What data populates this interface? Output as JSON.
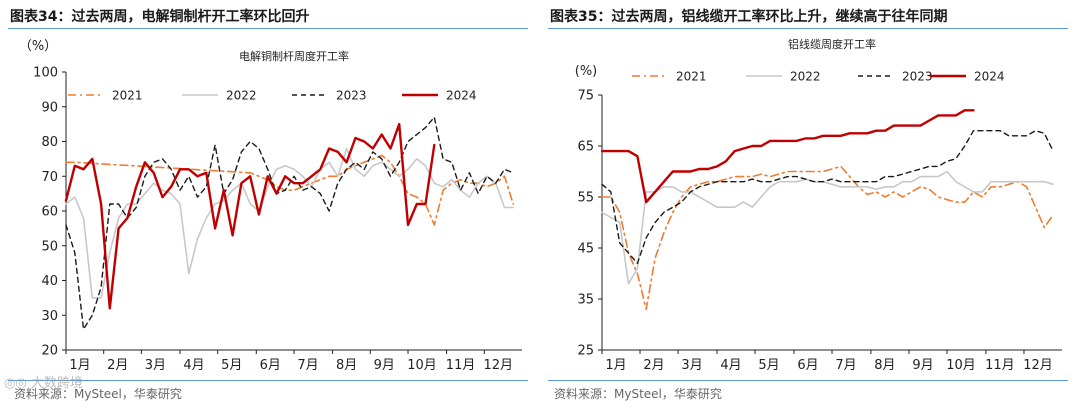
{
  "colors": {
    "s2021": "#ed7d31",
    "s2022": "#c8c8c8",
    "s2023": "#1a1a1a",
    "s2024": "#c00000",
    "rule": "#5b9bd5"
  },
  "watermark": "◎◎ 大数跨境",
  "chart_data": [
    {
      "type": "line",
      "figure_title": "图表34：过去两周，电解铜制杆开工率环比回升",
      "title": "电解铜制杆周度开工率",
      "ylabel": "（%）",
      "ylim": [
        20,
        100
      ],
      "yticks": [
        20,
        30,
        40,
        50,
        60,
        70,
        80,
        90,
        100
      ],
      "xlim": [
        0,
        52
      ],
      "xticks": [
        {
          "label": "1月",
          "x": 0
        },
        {
          "label": "2月",
          "x": 4.3
        },
        {
          "label": "3月",
          "x": 8.6
        },
        {
          "label": "4月",
          "x": 13
        },
        {
          "label": "5月",
          "x": 17.3
        },
        {
          "label": "6月",
          "x": 21.7
        },
        {
          "label": "7月",
          "x": 26
        },
        {
          "label": "8月",
          "x": 30.4
        },
        {
          "label": "9月",
          "x": 34.7
        },
        {
          "label": "10月",
          "x": 39
        },
        {
          "label": "11月",
          "x": 43.4
        },
        {
          "label": "12月",
          "x": 47.7
        }
      ],
      "legend_position": "top",
      "source": "资料来源：MySteel，华泰研究",
      "series": [
        {
          "name": "2021",
          "style": "dashdot",
          "color_key": "s2021",
          "x": [
            0,
            1,
            21,
            22,
            23,
            24,
            25,
            26,
            27,
            28,
            29,
            30,
            31,
            32,
            33,
            34,
            35,
            36,
            37,
            38,
            39,
            40,
            41,
            42,
            43,
            44,
            45,
            46,
            47,
            48,
            49,
            50,
            51
          ],
          "y": [
            74,
            74,
            71,
            70,
            69,
            67,
            66,
            66,
            67,
            68,
            69,
            70,
            70,
            72,
            73,
            74,
            75,
            76,
            74,
            70,
            65,
            64,
            62,
            56,
            66,
            68,
            69,
            68,
            68,
            67,
            68,
            70,
            62
          ]
        },
        {
          "name": "2022",
          "style": "solid",
          "color_key": "s2022",
          "x": [
            0,
            1,
            2,
            3,
            4,
            5,
            6,
            7,
            8,
            9,
            10,
            11,
            12,
            13,
            14,
            15,
            16,
            17,
            18,
            19,
            20,
            21,
            22,
            23,
            24,
            25,
            26,
            27,
            28,
            29,
            30,
            31,
            32,
            33,
            34,
            35,
            36,
            37,
            38,
            39,
            40,
            41,
            42,
            43,
            44,
            45,
            46,
            47,
            48,
            49,
            50,
            51
          ],
          "y": [
            62,
            64,
            58,
            35,
            35,
            48,
            58,
            62,
            62,
            65,
            68,
            66,
            65,
            62,
            42,
            52,
            58,
            62,
            63,
            66,
            68,
            62,
            60,
            67,
            72,
            73,
            72,
            70,
            67,
            72,
            74,
            70,
            78,
            72,
            70,
            73,
            74,
            72,
            70,
            72,
            75,
            73,
            68,
            67,
            69,
            66,
            64,
            68,
            70,
            68,
            61,
            61
          ]
        },
        {
          "name": "2023",
          "style": "dashed",
          "color_key": "s2023",
          "x": [
            0,
            1,
            2,
            3,
            4,
            5,
            6,
            7,
            8,
            9,
            10,
            11,
            12,
            13,
            14,
            15,
            16,
            17,
            18,
            19,
            20,
            21,
            22,
            23,
            24,
            25,
            26,
            27,
            28,
            29,
            30,
            31,
            32,
            33,
            34,
            35,
            36,
            37,
            38,
            39,
            40,
            41,
            42,
            43,
            44,
            45,
            46,
            47,
            48,
            49,
            50,
            51
          ],
          "y": [
            56,
            48,
            26,
            30,
            38,
            62,
            62,
            58,
            61,
            70,
            74,
            75,
            72,
            66,
            70,
            64,
            67,
            79,
            65,
            69,
            77,
            80,
            78,
            72,
            65,
            66,
            70,
            66,
            67,
            65,
            60,
            68,
            72,
            74,
            72,
            77,
            75,
            70,
            74,
            80,
            82,
            84,
            87,
            75,
            74,
            66,
            71,
            65,
            70,
            68,
            72,
            71
          ]
        },
        {
          "name": "2024",
          "style": "solid",
          "color_key": "s2024",
          "x": [
            0,
            1,
            2,
            3,
            4,
            5,
            6,
            7,
            8,
            9,
            10,
            11,
            12,
            13,
            14,
            15,
            16,
            17,
            18,
            19,
            20,
            21,
            22,
            23,
            24,
            25,
            26,
            27,
            28,
            29,
            30,
            31,
            32,
            33,
            34,
            35,
            36,
            37,
            38,
            39,
            40,
            41,
            42
          ],
          "y": [
            63,
            73,
            72,
            75,
            62,
            32,
            55,
            58,
            67,
            74,
            71,
            64,
            67,
            72,
            72,
            70,
            71,
            55,
            66,
            53,
            68,
            70,
            59,
            70,
            65,
            70,
            68,
            68,
            70,
            72,
            78,
            77,
            74,
            81,
            80,
            78,
            82,
            78,
            85,
            56,
            62,
            62,
            79
          ]
        }
      ]
    },
    {
      "type": "line",
      "figure_title": "图表35：过去两周，铝线缆开工率环比上升，继续高于往年同期",
      "title": "铝线缆周度开工率",
      "ylabel": "(%)",
      "ylim": [
        25,
        75
      ],
      "yticks": [
        25,
        35,
        45,
        55,
        65,
        75
      ],
      "xlim": [
        0,
        52
      ],
      "xticks": [
        {
          "label": "1月",
          "x": 0
        },
        {
          "label": "2月",
          "x": 4.3
        },
        {
          "label": "3月",
          "x": 8.6
        },
        {
          "label": "4月",
          "x": 13
        },
        {
          "label": "5月",
          "x": 17.3
        },
        {
          "label": "6月",
          "x": 21.7
        },
        {
          "label": "7月",
          "x": 26
        },
        {
          "label": "8月",
          "x": 30.4
        },
        {
          "label": "9月",
          "x": 34.7
        },
        {
          "label": "10月",
          "x": 39
        },
        {
          "label": "11月",
          "x": 43.4
        },
        {
          "label": "12月",
          "x": 47.7
        }
      ],
      "legend_position": "top",
      "source": "资料来源：MySteel，华泰研究",
      "series": [
        {
          "name": "2021",
          "style": "dashdot",
          "color_key": "s2021",
          "x": [
            0,
            1,
            2,
            3,
            4,
            5,
            6,
            7,
            8,
            9,
            10,
            11,
            12,
            13,
            14,
            15,
            16,
            17,
            18,
            19,
            20,
            21,
            22,
            23,
            24,
            25,
            26,
            27,
            28,
            29,
            30,
            31,
            32,
            33,
            34,
            35,
            36,
            37,
            38,
            39,
            40,
            41,
            42,
            43,
            44,
            45,
            46,
            47,
            48,
            49,
            50,
            51
          ],
          "y": [
            55,
            55,
            52,
            44,
            40,
            33,
            43,
            48,
            52,
            55,
            57,
            57.5,
            58,
            58,
            58.5,
            59,
            59,
            59,
            59.5,
            59,
            59.5,
            60,
            60,
            60,
            60,
            60,
            60.5,
            61,
            59,
            57,
            55.5,
            56,
            55,
            56,
            55,
            56,
            57,
            56.5,
            55,
            54.5,
            54,
            54,
            56,
            55,
            57,
            57,
            57.5,
            58,
            57,
            53,
            49,
            51.5
          ]
        },
        {
          "name": "2022",
          "style": "solid",
          "color_key": "s2022",
          "x": [
            0,
            1,
            2,
            3,
            4,
            5,
            6,
            7,
            8,
            9,
            10,
            11,
            12,
            13,
            14,
            15,
            16,
            17,
            18,
            19,
            20,
            21,
            22,
            23,
            24,
            25,
            26,
            27,
            28,
            29,
            30,
            31,
            32,
            33,
            34,
            35,
            36,
            37,
            38,
            39,
            40,
            41,
            42,
            43,
            44,
            45,
            46,
            47,
            48,
            49,
            50,
            51
          ],
          "y": [
            52,
            51,
            50,
            38,
            41,
            56,
            56,
            57,
            57,
            56,
            56,
            55,
            54,
            53,
            53,
            53,
            54,
            53,
            55,
            57,
            58,
            58,
            58,
            58.5,
            58,
            58,
            57.5,
            57,
            57,
            57,
            57,
            56.5,
            57,
            57,
            58,
            58,
            59,
            59,
            59,
            60,
            58,
            57,
            56,
            56,
            58,
            58,
            58,
            58,
            58,
            58,
            58,
            57.5
          ]
        },
        {
          "name": "2023",
          "style": "dashed",
          "color_key": "s2023",
          "x": [
            0,
            1,
            2,
            3,
            4,
            5,
            6,
            7,
            8,
            9,
            10,
            11,
            12,
            13,
            14,
            15,
            16,
            17,
            18,
            19,
            20,
            21,
            22,
            23,
            24,
            25,
            26,
            27,
            28,
            29,
            30,
            31,
            32,
            33,
            34,
            35,
            36,
            37,
            38,
            39,
            40,
            41,
            42,
            43,
            44,
            45,
            46,
            47,
            48,
            49,
            50,
            51
          ],
          "y": [
            57.5,
            56,
            46,
            44,
            42,
            47,
            50,
            52,
            53,
            54,
            56,
            57,
            57.5,
            58,
            58,
            58,
            58,
            58.5,
            58,
            58,
            58.5,
            59,
            59,
            58.5,
            58,
            58,
            58.5,
            58,
            58,
            58,
            58,
            58,
            59,
            59,
            59.5,
            60,
            60.5,
            61,
            61,
            62,
            62.5,
            65,
            68,
            68,
            68,
            68,
            67,
            67,
            67,
            68,
            67.5,
            64
          ]
        },
        {
          "name": "2024",
          "style": "solid",
          "color_key": "s2024",
          "x": [
            0,
            1,
            2,
            3,
            4,
            5,
            6,
            7,
            8,
            9,
            10,
            11,
            12,
            13,
            14,
            15,
            16,
            17,
            18,
            19,
            20,
            21,
            22,
            23,
            24,
            25,
            26,
            27,
            28,
            29,
            30,
            31,
            32,
            33,
            34,
            35,
            36,
            37,
            38,
            39,
            40,
            41,
            42
          ],
          "y": [
            64,
            64,
            64,
            64,
            63,
            54,
            56,
            58,
            60,
            60,
            60,
            60.5,
            60.5,
            61,
            62,
            64,
            64.5,
            65,
            65,
            66,
            66,
            66,
            66,
            66.5,
            66.5,
            67,
            67,
            67,
            67.5,
            67.5,
            67.5,
            68,
            68,
            69,
            69,
            69,
            69,
            70,
            71,
            71,
            71,
            72,
            72
          ]
        }
      ]
    }
  ]
}
